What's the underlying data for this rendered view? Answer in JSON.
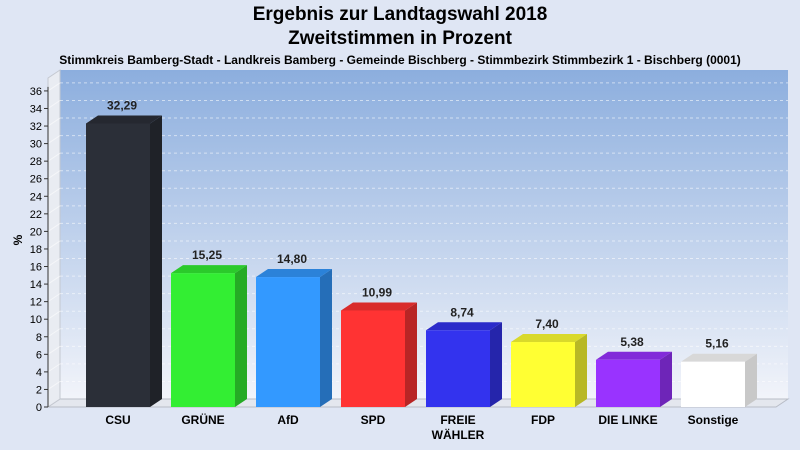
{
  "chart_data": {
    "type": "bar",
    "title": "Ergebnis zur Landtagswahl 2018",
    "subtitle": "Zweitstimmen in Prozent",
    "caption": "Stimmkreis Bamberg-Stadt - Landkreis Bamberg - Gemeinde Bischberg - Stimmbezirk Stimmbezirk 1 - Bischberg (0001)",
    "ylabel": "%",
    "xlabel": "",
    "ylim": [
      0,
      36
    ],
    "ytick_step": 2,
    "grid": true,
    "categories": [
      [
        "CSU"
      ],
      [
        "GRÜNE"
      ],
      [
        "AfD"
      ],
      [
        "SPD"
      ],
      [
        "FREIE",
        "WÄHLER"
      ],
      [
        "FDP"
      ],
      [
        "DIE LINKE"
      ],
      [
        "Sonstige"
      ]
    ],
    "values": [
      32.29,
      15.25,
      14.8,
      10.99,
      8.74,
      7.4,
      5.38,
      5.16
    ],
    "value_labels": [
      "32,29",
      "15,25",
      "14,80",
      "10,99",
      "8,74",
      "7,40",
      "5,38",
      "5,16"
    ],
    "colors": [
      "#2b2f38",
      "#33ee33",
      "#3399ff",
      "#ff3333",
      "#3333ee",
      "#ffff33",
      "#9933ff",
      "#ffffff"
    ]
  }
}
